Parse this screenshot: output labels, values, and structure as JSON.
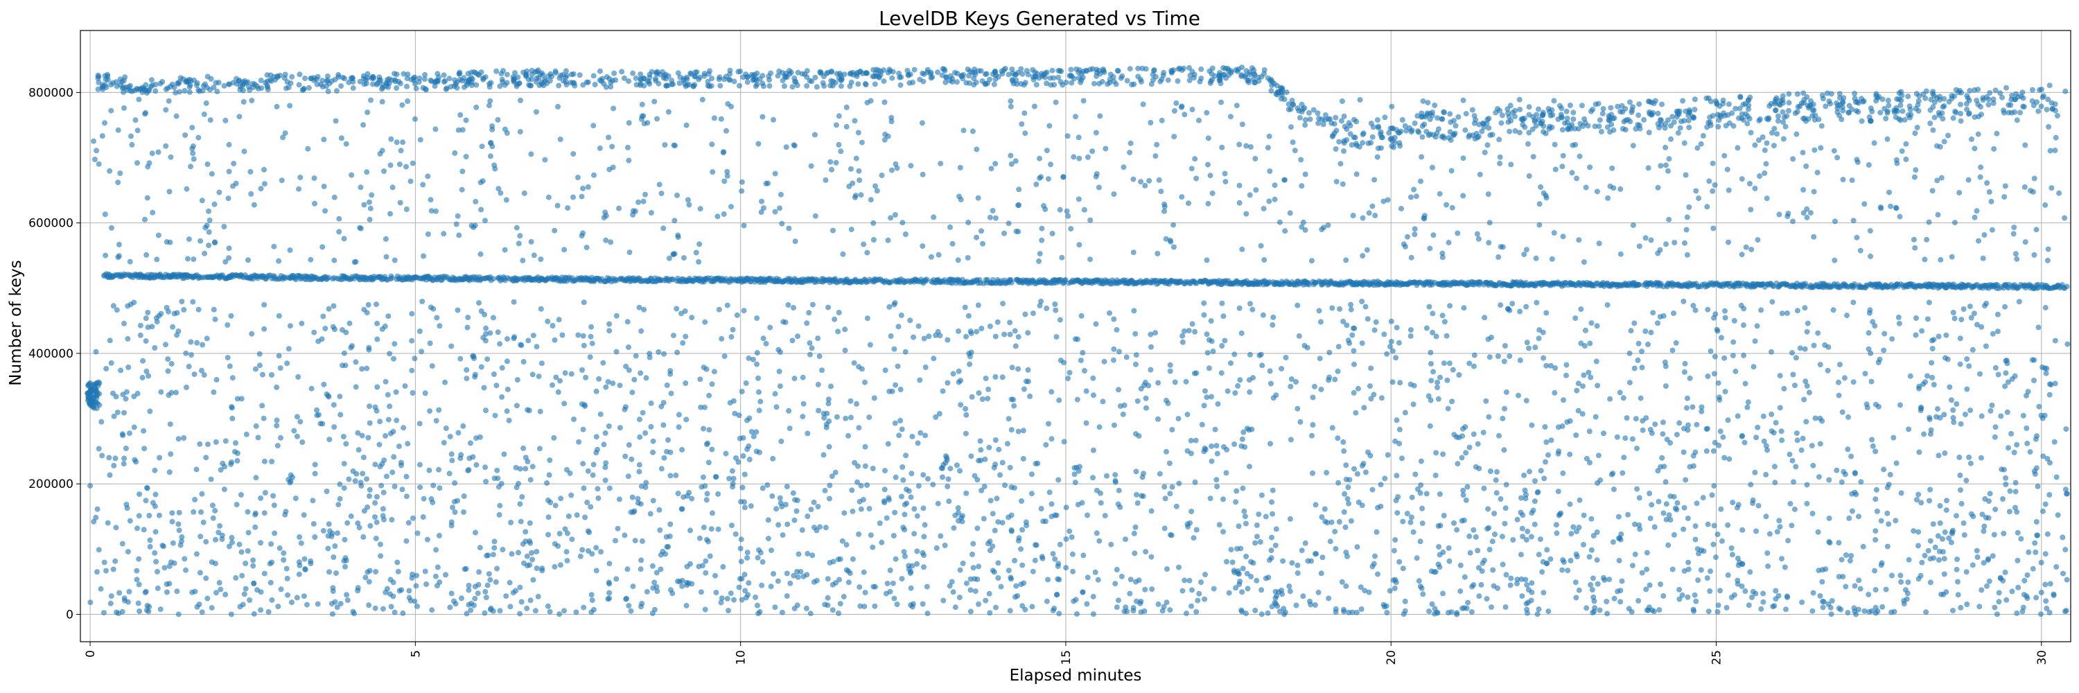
{
  "chart_data": {
    "type": "scatter",
    "title": "LevelDB Keys Generated vs Time",
    "xlabel": "Elapsed minutes",
    "ylabel": "Number of keys",
    "xlim": [
      -0.15,
      30.45
    ],
    "ylim": [
      -42000,
      895000
    ],
    "x_ticks": [
      0,
      5,
      10,
      15,
      20,
      25,
      30
    ],
    "x_tick_labels": [
      "0",
      "5",
      "10",
      "15",
      "20",
      "25",
      "30"
    ],
    "x_tick_rotation": 90,
    "y_ticks": [
      0,
      200000,
      400000,
      600000,
      800000
    ],
    "y_tick_labels": [
      "0",
      "200000",
      "400000",
      "600000",
      "800000"
    ],
    "grid": true,
    "marker_color": "#1f77b4",
    "marker_alpha": 0.6,
    "series": [
      {
        "points_note_omitted": true,
        "key_series": {
          "x": [
            0.0,
            0.0,
            0.05,
            0.08,
            0.1,
            0.12,
            0.15,
            0.18
          ],
          "y": [
            335000,
            325000,
            340000,
            330000,
            320000,
            338000,
            328000,
            345000
          ]
        },
        "mid_band": {
          "x": [
            0.2,
            0.5,
            1.0,
            1.5,
            2.0,
            2.5,
            3.0,
            3.5,
            4.0,
            4.5,
            5.0,
            5.5,
            6.0,
            6.5,
            7.0,
            7.5,
            8.0,
            8.5,
            9.0,
            9.5,
            10.0,
            10.5,
            11.0,
            11.5,
            12.0,
            12.5,
            13.0,
            13.5,
            14.0,
            14.5,
            15.0,
            15.5,
            16.0,
            16.5,
            17.0,
            17.5,
            18.0,
            18.5,
            19.0,
            19.5,
            20.0,
            20.5,
            21.0,
            21.5,
            22.0,
            22.5,
            23.0,
            23.5,
            24.0,
            24.5,
            25.0,
            25.5,
            26.0,
            26.5,
            27.0,
            27.5,
            28.0,
            28.5,
            29.0,
            29.5,
            30.0,
            30.4
          ],
          "y": [
            519000,
            519000,
            518500,
            518000,
            517500,
            517000,
            516500,
            516000,
            516000,
            515500,
            515000,
            515000,
            514500,
            514000,
            514000,
            513500,
            513000,
            513000,
            512500,
            512500,
            512000,
            512000,
            511500,
            511500,
            511000,
            511000,
            510500,
            510500,
            510000,
            510000,
            510000,
            509500,
            509500,
            509000,
            509000,
            508500,
            508500,
            508000,
            508000,
            507500,
            507500,
            507000,
            507000,
            506500,
            506500,
            506000,
            506000,
            505500,
            505500,
            505000,
            505000,
            504500,
            504500,
            504000,
            504000,
            503500,
            503500,
            503000,
            503000,
            502500,
            502500,
            502000
          ]
        },
        "top_band": {
          "x": [
            0.1,
            0.5,
            1.0,
            1.5,
            2.0,
            2.5,
            3.0,
            3.5,
            4.0,
            4.5,
            5.0,
            5.5,
            6.0,
            6.5,
            7.0,
            7.5,
            8.0,
            8.5,
            9.0,
            9.5,
            10.0,
            10.5,
            11.0,
            11.5,
            12.0,
            12.5,
            13.0,
            13.5,
            14.0,
            14.5,
            15.0,
            15.5,
            16.0,
            16.5,
            17.0,
            17.5,
            18.0,
            18.5,
            19.0,
            19.5,
            20.0,
            20.5,
            21.0,
            21.5,
            22.0,
            22.5,
            23.0,
            23.5,
            24.0,
            24.5,
            25.0,
            25.5,
            26.0,
            26.5,
            27.0,
            27.5,
            28.0,
            28.5,
            29.0,
            29.5,
            30.0,
            30.4
          ],
          "y": [
            830000,
            825000,
            822000,
            824000,
            826000,
            828000,
            830000,
            826000,
            828000,
            830000,
            828000,
            830000,
            832000,
            834000,
            835000,
            834000,
            833000,
            835000,
            834000,
            833000,
            834000,
            834000,
            833000,
            834000,
            835000,
            836000,
            837000,
            836000,
            837000,
            836000,
            836000,
            837000,
            837000,
            838000,
            838000,
            839000,
            840000,
            790000,
            770000,
            760000,
            755000,
            770000,
            772000,
            775000,
            778000,
            780000,
            782000,
            785000,
            788000,
            790000,
            792000,
            795000,
            798000,
            800000,
            800000,
            800000,
            802000,
            804000,
            806000,
            808000,
            810000,
            815000
          ]
        }
      }
    ]
  }
}
